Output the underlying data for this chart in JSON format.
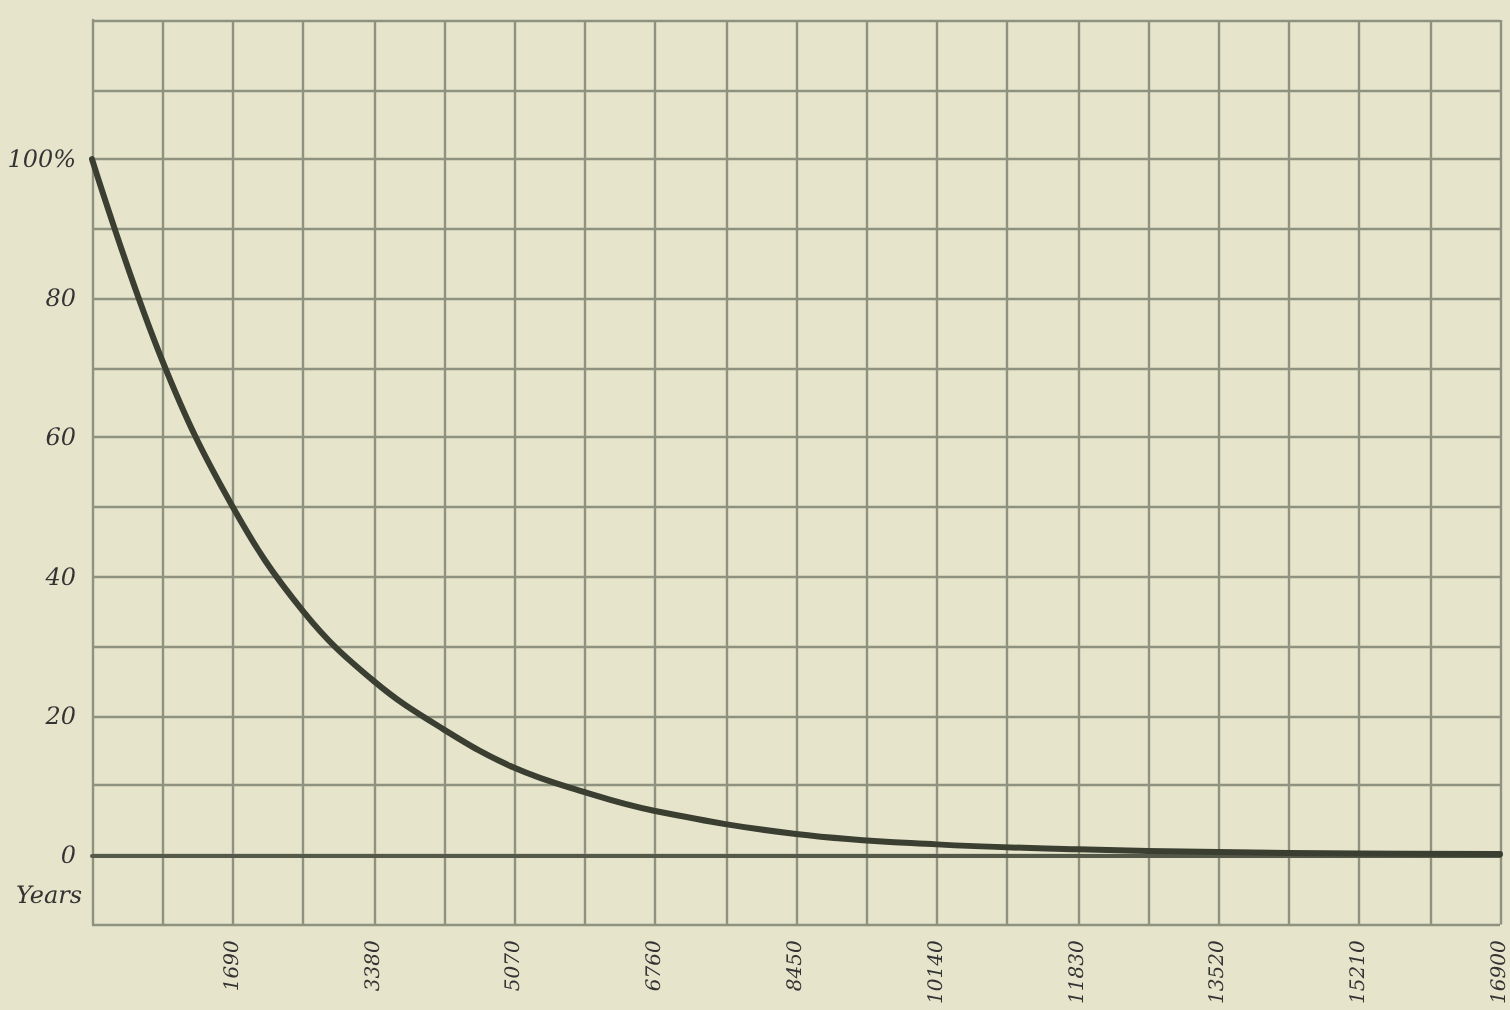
{
  "chart_data": {
    "type": "line",
    "xlabel": "Years",
    "x": [
      0,
      845,
      1690,
      2535,
      3380,
      4225,
      5070,
      5915,
      6760,
      8450,
      10140,
      11830,
      13520,
      15210,
      16900
    ],
    "series": [
      {
        "color": "#3a3f32",
        "values": [
          100,
          71,
          50,
          35,
          25,
          18,
          12.5,
          9,
          6.3,
          3,
          1.5,
          0.8,
          0.4,
          0.2,
          0.1
        ]
      }
    ],
    "xlim": [
      0,
      16900
    ],
    "xticks": [
      {
        "value": 845,
        "label": null
      },
      1690,
      {
        "value": 2535,
        "label": null
      },
      3380,
      {
        "value": 4225,
        "label": null
      },
      5070,
      {
        "value": 5915,
        "label": null
      },
      6760,
      {
        "value": 7605,
        "label": null
      },
      8450,
      {
        "value": 9295,
        "label": null
      },
      10140,
      {
        "value": 10985,
        "label": null
      },
      11830,
      {
        "value": 12675,
        "label": null
      },
      13520,
      {
        "value": 14365,
        "label": null
      },
      15210,
      {
        "value": 16055,
        "label": null
      },
      16900
    ],
    "ylim": [
      -10,
      120
    ],
    "yticks": [
      {
        "value": -10,
        "label": null
      },
      0,
      {
        "value": 10,
        "label": null
      },
      20,
      {
        "value": 30,
        "label": null
      },
      40,
      {
        "value": 50,
        "label": null
      },
      60,
      {
        "value": 70,
        "label": null
      },
      80,
      {
        "value": 90,
        "label": null
      },
      {
        "value": 100,
        "label": "100%"
      },
      {
        "value": 110,
        "label": null
      },
      {
        "value": 120,
        "label": null
      }
    ],
    "grid": true,
    "marker": "none",
    "line_style": "solid"
  }
}
